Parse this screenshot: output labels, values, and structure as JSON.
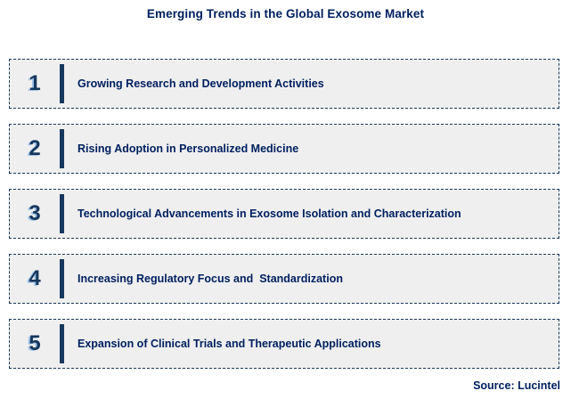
{
  "title": "Emerging Trends in the Global Exosome Market",
  "source": "Source: Lucintel",
  "colors": {
    "navy": "#17375d",
    "title_text": "#002060",
    "box_fill": "#efefef",
    "number_highlight": "#9dc3e6",
    "background": "#ffffff"
  },
  "trends": [
    {
      "number": "1",
      "label": "Growing Research and Development Activities"
    },
    {
      "number": "2",
      "label": "Rising Adoption in Personalized Medicine"
    },
    {
      "number": "3",
      "label": "Technological Advancements in Exosome Isolation and Characterization"
    },
    {
      "number": "4",
      "label": "Increasing Regulatory Focus and  Standardization"
    },
    {
      "number": "5",
      "label": "Expansion of Clinical Trials and Therapeutic Applications"
    }
  ]
}
